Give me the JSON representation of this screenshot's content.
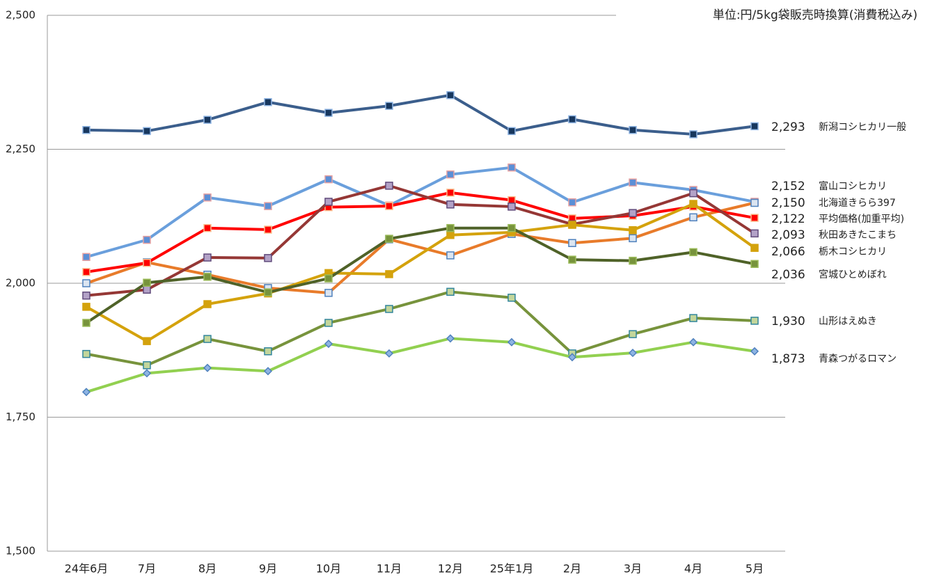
{
  "chart_data": {
    "type": "line",
    "annotation": "単位:円/5kg袋販売時換算(消費税込み)",
    "categories": [
      "24年6月",
      "7月",
      "8月",
      "9月",
      "10月",
      "11月",
      "12月",
      "25年1月",
      "2月",
      "3月",
      "4月",
      "5月"
    ],
    "ylim": [
      1500,
      2500
    ],
    "yticks": [
      {
        "value": 1500,
        "label": "1,500"
      },
      {
        "value": 1750,
        "label": "1,750"
      },
      {
        "value": 2000,
        "label": "2,000"
      },
      {
        "value": 2250,
        "label": "2,250"
      },
      {
        "value": 2500,
        "label": "2,500"
      }
    ],
    "grid": true,
    "series": [
      {
        "name": "新潟コシヒカリ一般",
        "color": "#3b5e8c",
        "marker": "square",
        "marker_fill": "#17375e",
        "marker_edge": "#8eb4e3",
        "values": [
          2286,
          2284,
          2305,
          2338,
          2318,
          2331,
          2351,
          2284,
          2306,
          2286,
          2278,
          2293
        ],
        "value_labels": [
          null,
          null,
          null,
          null,
          null,
          null,
          null,
          null,
          null,
          null,
          null,
          "2,293"
        ]
      },
      {
        "name": "富山コシヒカリ",
        "color": "#6a9fdc",
        "marker": "square",
        "marker_fill": "#5b8fd6",
        "marker_edge": "#e6a0a0",
        "values": [
          2049,
          2081,
          2160,
          2144,
          2194,
          2145,
          2203,
          2216,
          2151,
          2188,
          2174,
          2152
        ],
        "value_labels": [
          null,
          null,
          null,
          null,
          null,
          null,
          null,
          null,
          null,
          null,
          null,
          "2,152"
        ]
      },
      {
        "name": "北海道きらら397",
        "color": "#e87b2a",
        "marker": "square",
        "marker_fill": "#dbe5f1",
        "marker_edge": "#4f81bd",
        "values": [
          2000,
          2039,
          2016,
          1991,
          1982,
          2082,
          2052,
          2092,
          2075,
          2084,
          2123,
          2150
        ],
        "value_labels": [
          null,
          null,
          null,
          null,
          null,
          null,
          null,
          null,
          null,
          null,
          null,
          "2,150"
        ]
      },
      {
        "name": "平均価格(加重平均)",
        "color": "#ff0000",
        "marker": "square",
        "marker_fill": "#ff0000",
        "marker_edge": "#fac090",
        "values": [
          2021,
          2038,
          2103,
          2100,
          2142,
          2144,
          2169,
          2155,
          2121,
          2126,
          2143,
          2122
        ],
        "value_labels": [
          null,
          null,
          null,
          null,
          null,
          null,
          null,
          null,
          null,
          null,
          null,
          "2,122"
        ]
      },
      {
        "name": "秋田あきたこまち",
        "color": "#953735",
        "marker": "square",
        "marker_fill": "#b3a2c7",
        "marker_edge": "#604a7b",
        "values": [
          1977,
          1988,
          2048,
          2047,
          2152,
          2182,
          2147,
          2143,
          2110,
          2131,
          2168,
          2093
        ],
        "value_labels": [
          null,
          null,
          null,
          null,
          null,
          null,
          null,
          null,
          null,
          null,
          null,
          "2,093"
        ]
      },
      {
        "name": "栃木コシヒカリ",
        "color": "#d4a20c",
        "marker": "square",
        "marker_fill": "#d4a20c",
        "marker_edge": "#d4a20c",
        "values": [
          1956,
          1892,
          1961,
          1981,
          2019,
          2017,
          2090,
          2095,
          2109,
          2099,
          2148,
          2066
        ],
        "value_labels": [
          null,
          null,
          null,
          null,
          null,
          null,
          null,
          null,
          null,
          null,
          null,
          "2,066"
        ]
      },
      {
        "name": "宮城ひとめぼれ",
        "color": "#4f6228",
        "marker": "square",
        "marker_fill": "#77933c",
        "marker_edge": "#9bbb59",
        "values": [
          1926,
          2001,
          2012,
          1983,
          2009,
          2083,
          2103,
          2103,
          2044,
          2042,
          2058,
          2036
        ],
        "value_labels": [
          null,
          null,
          null,
          null,
          null,
          null,
          null,
          null,
          null,
          null,
          null,
          "2,036"
        ]
      },
      {
        "name": "山形はえぬき",
        "color": "#77933c",
        "marker": "square",
        "marker_fill": "#c3d69b",
        "marker_edge": "#31859c",
        "values": [
          1868,
          1847,
          1896,
          1873,
          1926,
          1952,
          1984,
          1973,
          1869,
          1905,
          1935,
          1930
        ],
        "value_labels": [
          null,
          null,
          null,
          null,
          null,
          null,
          null,
          null,
          null,
          null,
          null,
          "1,930"
        ]
      },
      {
        "name": "青森つがるロマン",
        "color": "#92d050",
        "marker": "diamond",
        "marker_fill": "#8eb4e3",
        "marker_edge": "#4f81bd",
        "values": [
          1797,
          1832,
          1842,
          1836,
          1887,
          1869,
          1897,
          1890,
          1862,
          1870,
          1890,
          1873
        ],
        "value_labels": [
          null,
          null,
          null,
          null,
          null,
          null,
          null,
          null,
          null,
          null,
          null,
          "1,873"
        ]
      }
    ]
  }
}
